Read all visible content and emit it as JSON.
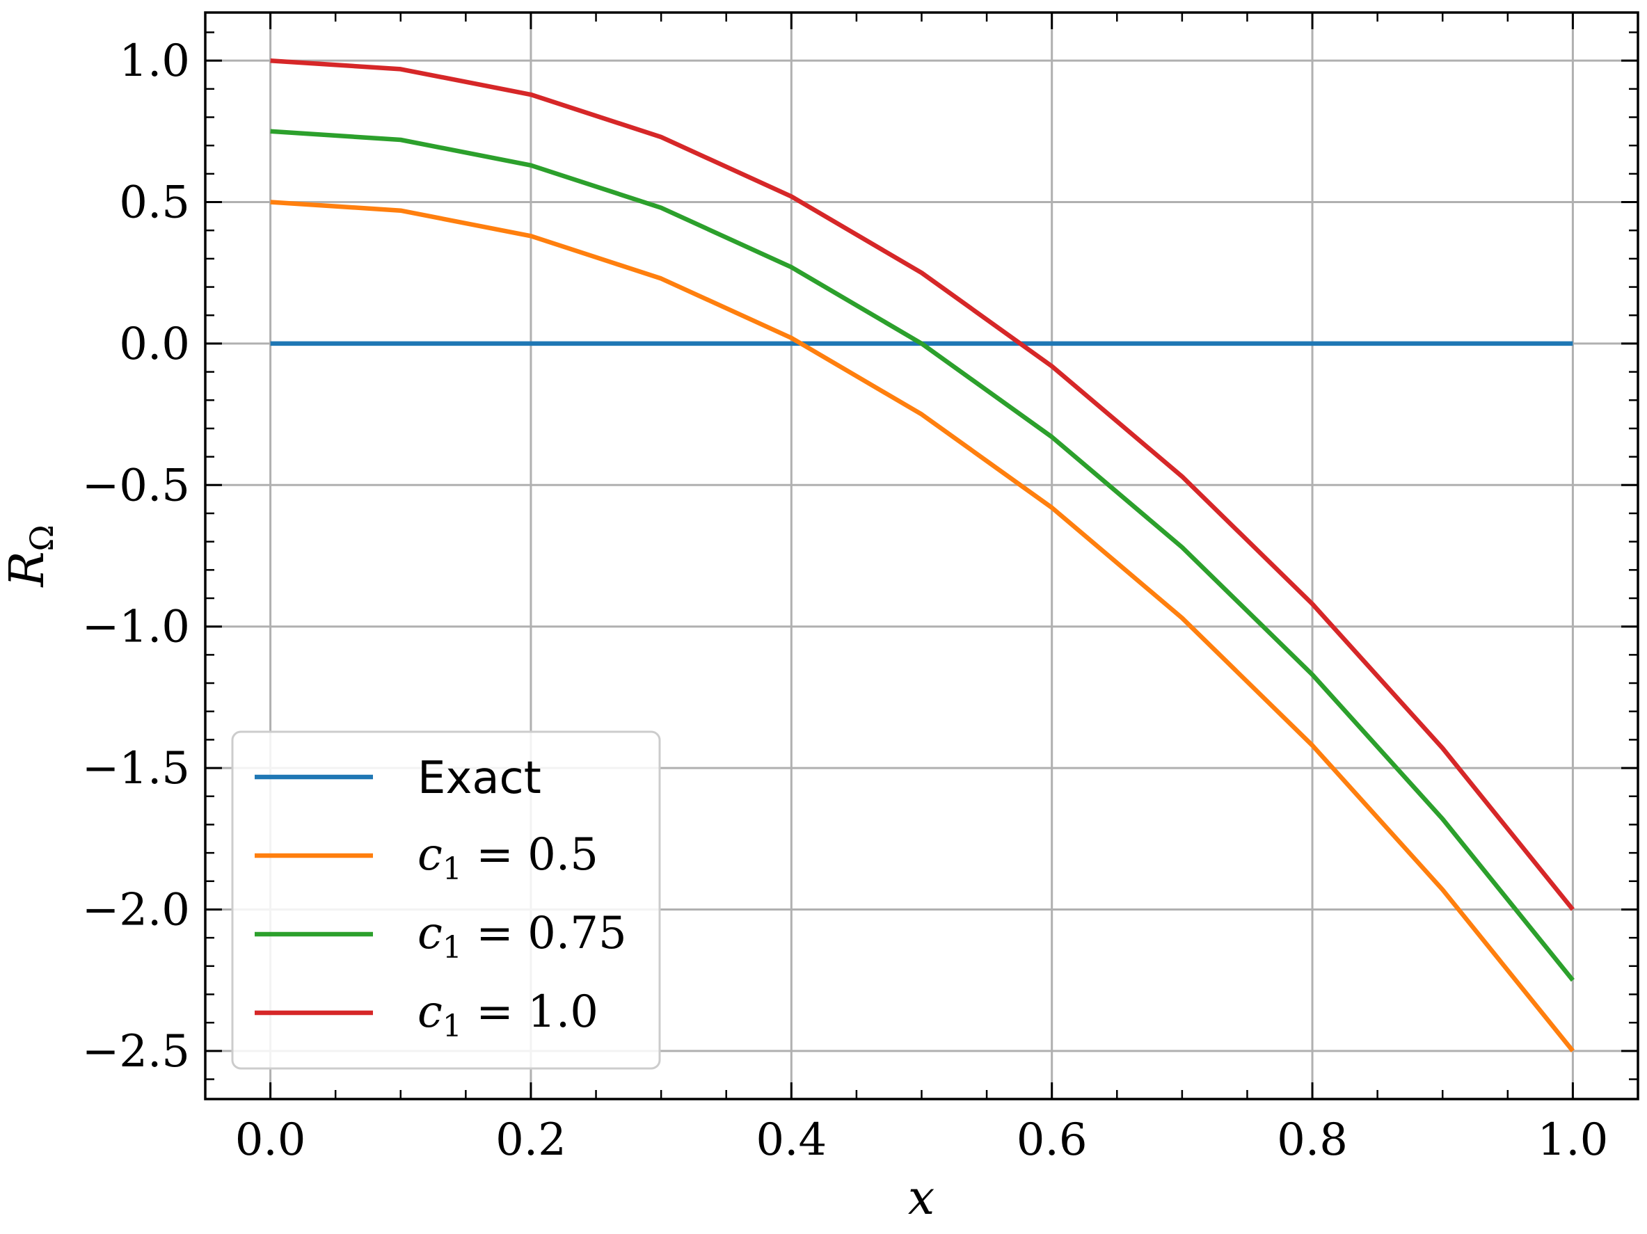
{
  "chart_data": {
    "type": "line",
    "xlabel": "x",
    "ylabel": "R",
    "ylabel_subscript": "Ω",
    "xlim": [
      -0.05,
      1.05
    ],
    "ylim": [
      -2.67,
      1.17
    ],
    "xticks": [
      0.0,
      0.2,
      0.4,
      0.6,
      0.8,
      1.0
    ],
    "xtick_labels": [
      "0.0",
      "0.2",
      "0.4",
      "0.6",
      "0.8",
      "1.0"
    ],
    "yticks": [
      1.0,
      0.5,
      0.0,
      -0.5,
      -1.0,
      -1.5,
      -2.0,
      -2.5
    ],
    "ytick_labels": [
      "1.0",
      "0.5",
      "0.0",
      "−0.5",
      "−1.0",
      "−1.5",
      "−2.0",
      "−2.5"
    ],
    "grid": true,
    "legend_position": "lower-left",
    "series": [
      {
        "name": "Exact",
        "label_plain": "Exact",
        "color": "#1f77b4",
        "x": [
          0.0,
          0.1,
          0.2,
          0.3,
          0.4,
          0.5,
          0.6,
          0.7,
          0.8,
          0.9,
          1.0
        ],
        "y": [
          0.0,
          0.0,
          0.0,
          0.0,
          0.0,
          0.0,
          0.0,
          0.0,
          0.0,
          0.0,
          0.0
        ]
      },
      {
        "name": "c1 = 0.5",
        "label_math": {
          "var": "c",
          "sub": "1",
          "rest": " = 0.5"
        },
        "color": "#ff7f0e",
        "x": [
          0.0,
          0.1,
          0.2,
          0.3,
          0.4,
          0.5,
          0.6,
          0.7,
          0.8,
          0.9,
          1.0
        ],
        "y": [
          0.5,
          0.47,
          0.38,
          0.23,
          0.02,
          -0.25,
          -0.58,
          -0.97,
          -1.42,
          -1.93,
          -2.5
        ]
      },
      {
        "name": "c1 = 0.75",
        "label_math": {
          "var": "c",
          "sub": "1",
          "rest": " = 0.75"
        },
        "color": "#2ca02c",
        "x": [
          0.0,
          0.1,
          0.2,
          0.3,
          0.4,
          0.5,
          0.6,
          0.7,
          0.8,
          0.9,
          1.0
        ],
        "y": [
          0.75,
          0.72,
          0.63,
          0.48,
          0.27,
          0.0,
          -0.33,
          -0.72,
          -1.17,
          -1.68,
          -2.25
        ]
      },
      {
        "name": "c1 = 1.0",
        "label_math": {
          "var": "c",
          "sub": "1",
          "rest": " = 1.0"
        },
        "color": "#d62728",
        "x": [
          0.0,
          0.1,
          0.2,
          0.3,
          0.4,
          0.5,
          0.6,
          0.7,
          0.8,
          0.9,
          1.0
        ],
        "y": [
          1.0,
          0.97,
          0.88,
          0.73,
          0.52,
          0.25,
          -0.08,
          -0.47,
          -0.92,
          -1.43,
          -2.0
        ]
      }
    ]
  }
}
